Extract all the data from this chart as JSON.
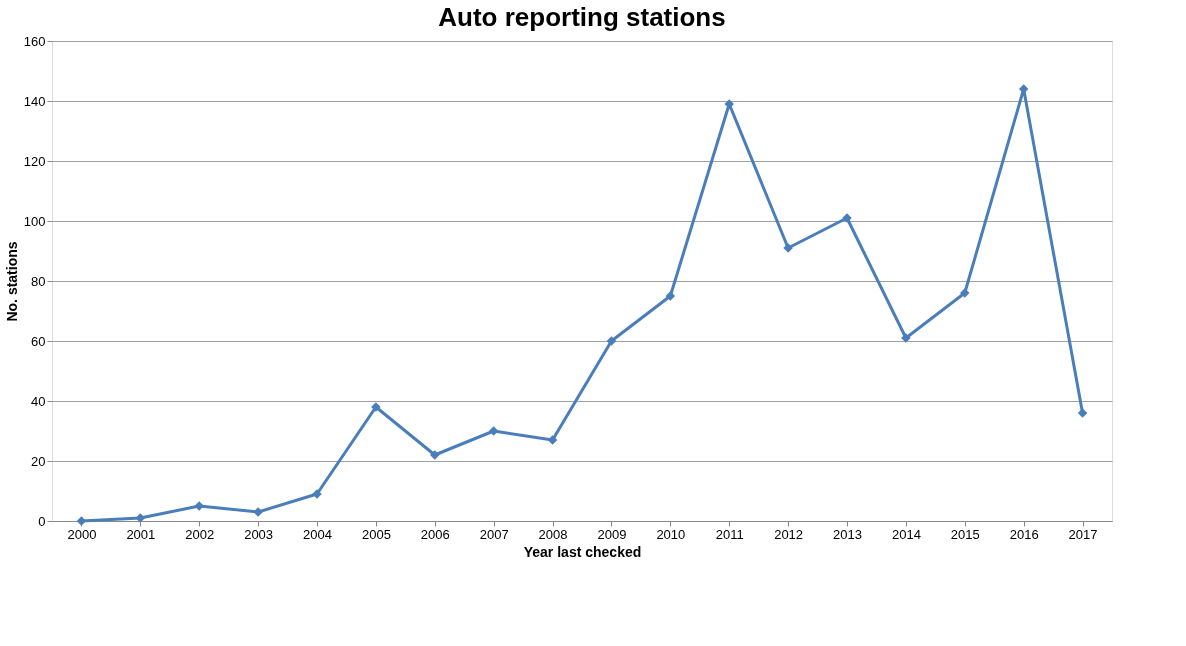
{
  "chart_data": {
    "type": "line",
    "title": "Auto reporting stations",
    "xlabel": "Year last checked",
    "ylabel": "No. stations",
    "categories": [
      "2000",
      "2001",
      "2002",
      "2003",
      "2004",
      "2005",
      "2006",
      "2007",
      "2008",
      "2009",
      "2010",
      "2011",
      "2012",
      "2013",
      "2014",
      "2015",
      "2016",
      "2017"
    ],
    "series": [
      {
        "color": "#4a7ebb",
        "values": [
          0,
          1,
          5,
          3,
          9,
          38,
          22,
          30,
          27,
          60,
          75,
          139,
          91,
          101,
          61,
          76,
          144,
          36
        ]
      }
    ],
    "ylim": [
      0,
      160
    ],
    "yticks": [
      0,
      20,
      40,
      60,
      80,
      100,
      120,
      140,
      160
    ],
    "grid": "y",
    "marker": "diamond",
    "line_style": "solid"
  }
}
